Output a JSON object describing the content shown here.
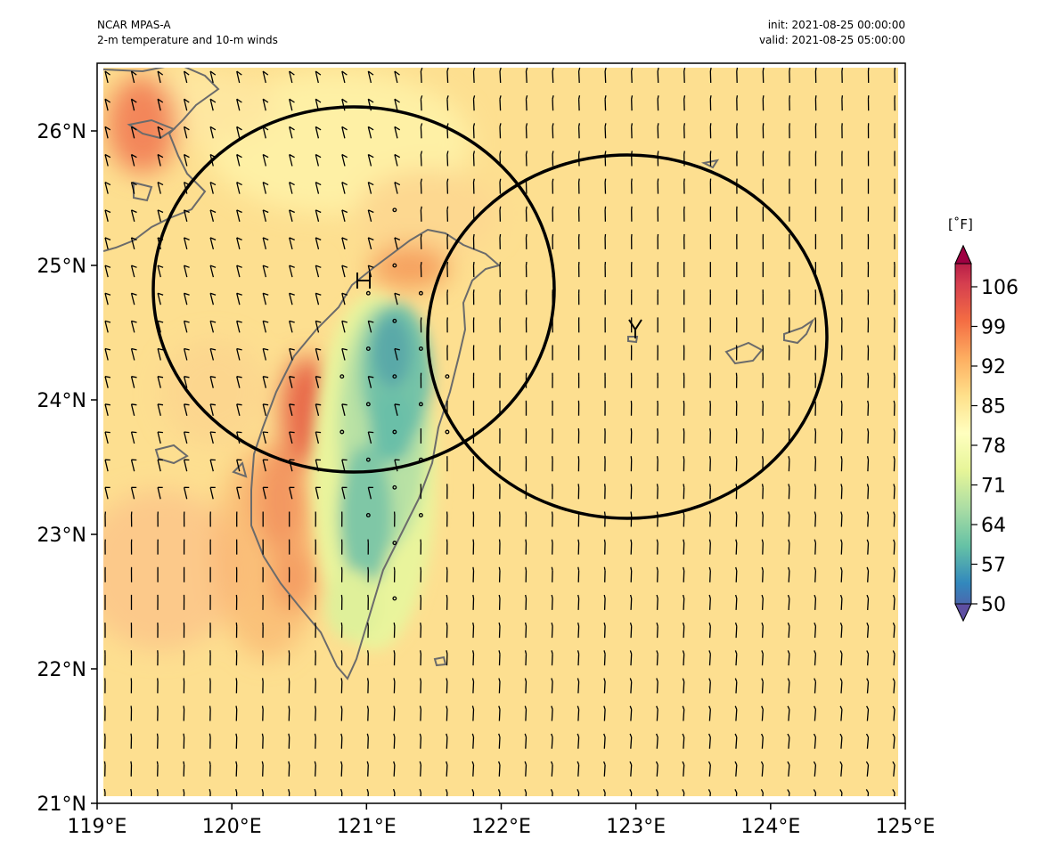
{
  "header": {
    "model": "NCAR MPAS-A",
    "product": "2-m temperature and 10-m winds",
    "init": "init: 2021-08-25 00:00:00",
    "valid": "valid: 2021-08-25 05:00:00"
  },
  "map": {
    "lon_range": [
      119,
      125
    ],
    "lat_range": [
      21,
      26.5
    ],
    "x_ticks": [
      "119°E",
      "120°E",
      "121°E",
      "122°E",
      "123°E",
      "124°E",
      "125°E"
    ],
    "y_ticks": [
      "21°N",
      "22°N",
      "23°N",
      "24°N",
      "25°N",
      "26°N"
    ],
    "markers": [
      {
        "label": "H",
        "lon": 120.9,
        "lat": 24.85
      },
      {
        "label": "Y",
        "lon": 122.95,
        "lat": 24.5
      }
    ],
    "circles": [
      {
        "center_lon": 120.9,
        "center_lat": 24.83,
        "note": "left ring"
      },
      {
        "center_lon": 122.95,
        "center_lat": 24.47,
        "note": "right ring"
      }
    ],
    "colors": {
      "background_field": "#fddf90",
      "warm_spot": "#f6a15f",
      "hot_spot": "#e8694a",
      "cool_mountain": "#5fb7a6",
      "coast": "#6b6b6b",
      "ring": "#000000"
    }
  },
  "colorbar": {
    "unit": "[˚F]",
    "ticks": [
      "50",
      "57",
      "64",
      "71",
      "78",
      "85",
      "92",
      "99",
      "106"
    ],
    "range": [
      50,
      110
    ]
  }
}
